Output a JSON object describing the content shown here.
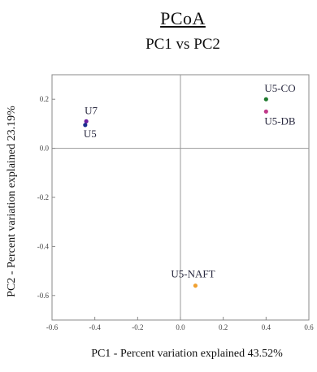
{
  "chart_data": {
    "type": "scatter",
    "title": "PCoA",
    "subtitle": "PC1 vs PC2",
    "xlabel": "PC1 - Percent variation explained 43.52%",
    "ylabel": "PC2 - Percent variation explained 23.19%",
    "xlim": [
      -0.6,
      0.6
    ],
    "ylim": [
      -0.7,
      0.3
    ],
    "xticks": [
      -0.6,
      -0.4,
      -0.2,
      0.0,
      0.2,
      0.4,
      0.6
    ],
    "xtick_labels": [
      "-0.6",
      "-0.4",
      "-0.2",
      "0.0",
      "0.2",
      "0.4",
      "0.6"
    ],
    "yticks": [
      -0.6,
      -0.4,
      -0.2,
      0.0,
      0.2
    ],
    "ytick_labels": [
      "-0.6",
      "-0.4",
      "-0.2",
      "0.0",
      "0.2"
    ],
    "grid": false,
    "points": [
      {
        "label": "U7",
        "x": -0.44,
        "y": 0.11,
        "color": "#6b1fa0"
      },
      {
        "label": "U5",
        "x": -0.445,
        "y": 0.095,
        "color": "#1a2e8f"
      },
      {
        "label": "U5-CO",
        "x": 0.4,
        "y": 0.2,
        "color": "#1f7a2e"
      },
      {
        "label": "U5-DB",
        "x": 0.4,
        "y": 0.15,
        "color": "#c0398a"
      },
      {
        "label": "U5-NAFT",
        "x": 0.07,
        "y": -0.56,
        "color": "#f0a030"
      }
    ]
  }
}
